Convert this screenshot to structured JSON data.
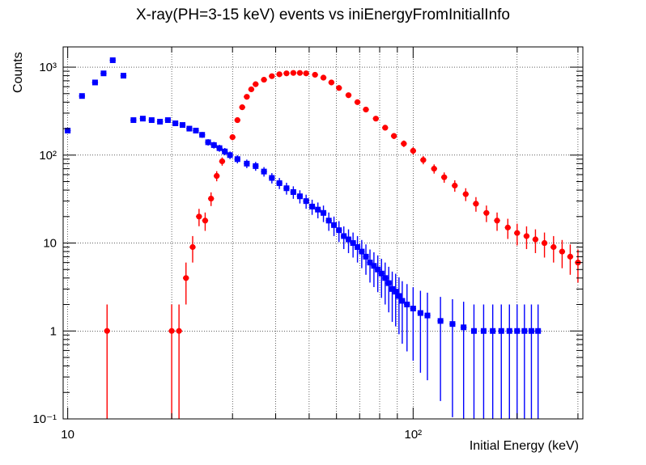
{
  "chart_data": {
    "type": "scatter",
    "title": "X-ray(PH=3-15 keV) events vs iniEnergyFromInitialInfo",
    "xlabel": "Initial Energy (keV)",
    "ylabel": "Counts",
    "x_scale": "log",
    "y_scale": "log",
    "xlim": [
      9.7,
      310
    ],
    "ylim": [
      0.1,
      1700
    ],
    "grid": true,
    "x_ticks": [
      {
        "value": 10,
        "label": "10"
      },
      {
        "value": 100,
        "label": "10²"
      }
    ],
    "y_ticks": [
      {
        "value": 0.1,
        "label": "10⁻¹"
      },
      {
        "value": 1,
        "label": "1"
      },
      {
        "value": 10,
        "label": "10"
      },
      {
        "value": 100,
        "label": "10²"
      },
      {
        "value": 1000,
        "label": "10³"
      }
    ],
    "series": [
      {
        "color": "#ff0000",
        "marker": "circle",
        "x": [
          13,
          20,
          21,
          22,
          23,
          24,
          25,
          26,
          27,
          28,
          30,
          31,
          32,
          33,
          34,
          35,
          37,
          39,
          41,
          43,
          45,
          47,
          49,
          52,
          55,
          58,
          61,
          65,
          69,
          73,
          78,
          83,
          88,
          94,
          100,
          107,
          115,
          123,
          132,
          142,
          152,
          163,
          175,
          188,
          200,
          213,
          226,
          240,
          255,
          270,
          285,
          300
        ],
        "y": [
          1,
          1,
          1,
          4,
          9,
          20,
          18,
          32,
          58,
          85,
          160,
          250,
          350,
          460,
          560,
          640,
          720,
          790,
          830,
          850,
          860,
          860,
          850,
          820,
          760,
          670,
          580,
          480,
          400,
          330,
          260,
          205,
          165,
          135,
          112,
          88,
          70,
          56,
          45,
          36,
          28,
          22,
          18,
          15,
          13,
          12,
          11,
          10,
          9,
          8,
          7,
          6
        ]
      },
      {
        "color": "#0000ff",
        "marker": "square",
        "x": [
          10,
          11,
          12,
          12.7,
          13.5,
          14.5,
          15.5,
          16.5,
          17.5,
          18.5,
          19.5,
          20.5,
          21.5,
          22.5,
          23.5,
          24.5,
          25.5,
          26.5,
          27.5,
          28.5,
          29.5,
          31,
          33,
          35,
          37,
          39,
          41,
          43,
          45,
          47,
          49,
          51,
          53,
          55,
          57,
          59,
          61,
          63,
          65,
          67,
          69,
          71,
          73,
          75,
          77,
          79,
          81,
          83,
          85,
          87,
          89,
          91,
          93,
          96,
          100,
          105,
          110,
          120,
          130,
          140,
          150,
          160,
          170,
          180,
          190,
          200,
          210,
          220,
          230
        ],
        "y": [
          190,
          470,
          670,
          850,
          1200,
          800,
          250,
          260,
          250,
          240,
          250,
          230,
          220,
          200,
          190,
          170,
          140,
          130,
          120,
          110,
          100,
          90,
          80,
          75,
          65,
          55,
          48,
          42,
          38,
          34,
          30,
          26,
          24,
          22,
          18,
          16,
          14,
          12,
          11,
          10,
          9,
          8,
          7,
          6,
          5.5,
          5,
          4.5,
          4,
          3.5,
          3,
          2.8,
          2.5,
          2.2,
          2,
          1.8,
          1.6,
          1.5,
          1.3,
          1.2,
          1.1,
          1,
          1,
          1,
          1,
          1,
          1,
          1,
          1,
          1
        ]
      }
    ]
  }
}
